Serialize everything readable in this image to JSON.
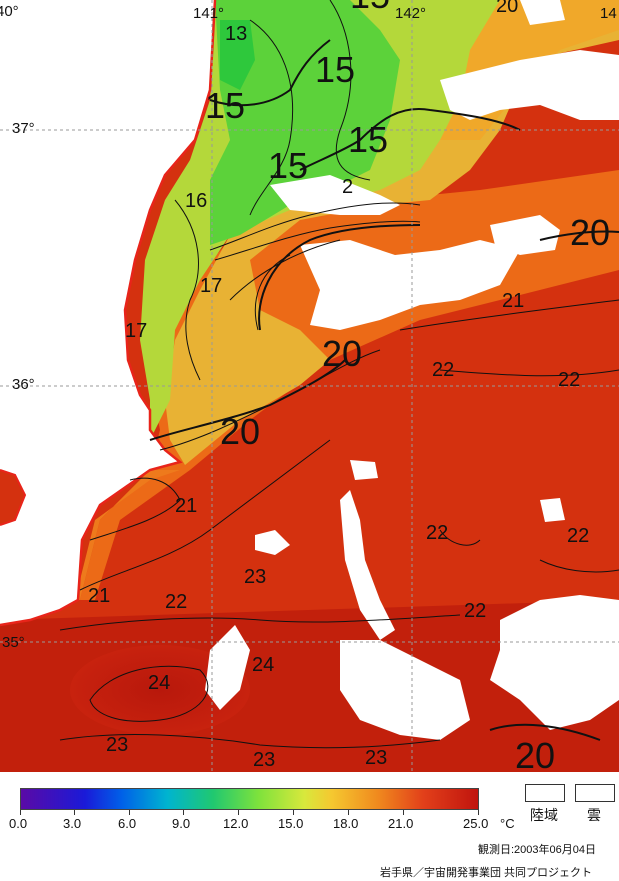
{
  "map": {
    "longitude_labels": [
      "40°",
      "141°",
      "142°",
      "14"
    ],
    "latitude_labels": [
      "37°",
      "36°",
      "35°"
    ],
    "contour_labels": [
      "13",
      "15",
      "15",
      "15",
      "15",
      "15",
      "16",
      "17",
      "17",
      "20",
      "20",
      "20",
      "20",
      "21",
      "21",
      "21",
      "22",
      "22",
      "22",
      "22",
      "22",
      "22",
      "23",
      "23",
      "23",
      "23",
      "24",
      "24",
      "20",
      "2"
    ]
  },
  "legend": {
    "scale_ticks": [
      "0.0",
      "3.0",
      "6.0",
      "9.0",
      "12.0",
      "15.0",
      "18.0",
      "21.0",
      "25.0"
    ],
    "unit": "°C",
    "land_label": "陸域",
    "cloud_label": "雲",
    "observation_date": "観測日:2003年06月04日",
    "credit": "岩手県／宇宙開発事業団 共同プロジェクト"
  },
  "colors": {
    "land": "#ffffff",
    "coast": "#e8241a",
    "warm_sea": "#d8300f",
    "mid_sea": "#ec6a17",
    "cool_sea": "#98d43a",
    "cold_sea": "#3cc83a"
  }
}
